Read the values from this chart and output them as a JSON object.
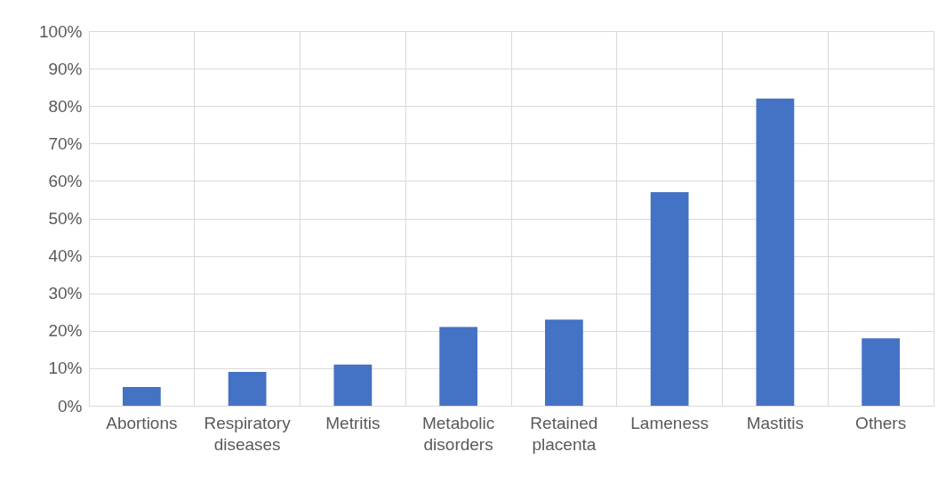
{
  "chart_data": {
    "type": "bar",
    "categories": [
      "Abortions",
      "Respiratory diseases",
      "Metritis",
      "Metabolic disorders",
      "Retained placenta",
      "Lameness",
      "Mastitis",
      "Others"
    ],
    "values": [
      5,
      9,
      11,
      21,
      23,
      57,
      82,
      18
    ],
    "color": "#4472c4",
    "ylim": [
      0,
      100
    ],
    "yticks": [
      {
        "value": 0,
        "label": "0%"
      },
      {
        "value": 10,
        "label": "10%"
      },
      {
        "value": 20,
        "label": "20%"
      },
      {
        "value": 30,
        "label": "30%"
      },
      {
        "value": 40,
        "label": "40%"
      },
      {
        "value": 50,
        "label": "50%"
      },
      {
        "value": 60,
        "label": "60%"
      },
      {
        "value": 70,
        "label": "70%"
      },
      {
        "value": 80,
        "label": "80%"
      },
      {
        "value": 90,
        "label": "90%"
      },
      {
        "value": 100,
        "label": "100%"
      }
    ],
    "grid": true
  }
}
